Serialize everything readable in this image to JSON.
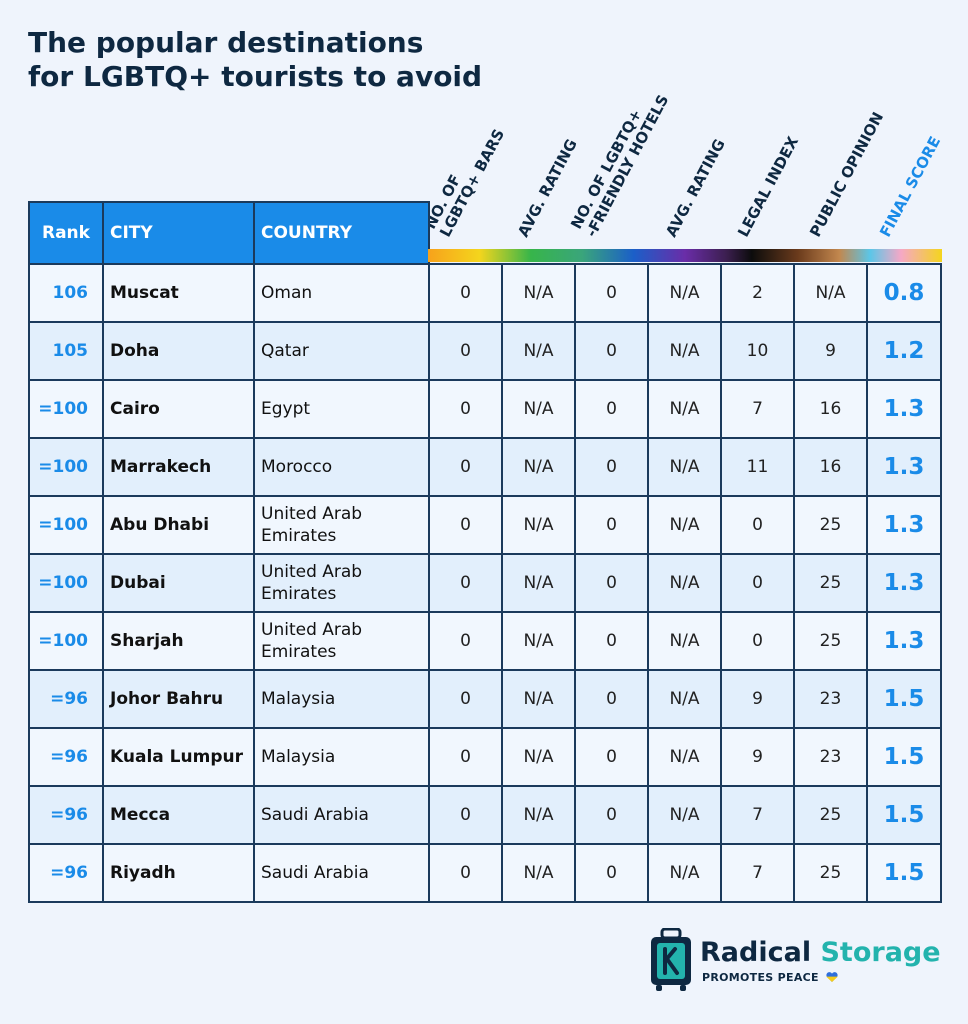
{
  "title": {
    "line1": "The popular destinations",
    "line2": "for LGBTQ+ tourists to avoid"
  },
  "header": {
    "rank": "Rank",
    "city": "CITY",
    "country": "COUNTRY",
    "rotated": [
      "NO. OF\nLGBTQ+ BARS",
      "AVG. RATING",
      "NO. OF LGBTQ+\n-FRIENDLY HOTELS",
      "AVG. RATING",
      "LEGAL INDEX",
      "PUBLIC OPINION",
      "FINAL SCORE"
    ]
  },
  "rows": [
    {
      "rank": "106",
      "city": "Muscat",
      "country": "Oman",
      "bars": "0",
      "bars_rating": "N/A",
      "hotels": "0",
      "hotels_rating": "N/A",
      "legal": "2",
      "opinion": "N/A",
      "final": "0.8"
    },
    {
      "rank": "105",
      "city": "Doha",
      "country": "Qatar",
      "bars": "0",
      "bars_rating": "N/A",
      "hotels": "0",
      "hotels_rating": "N/A",
      "legal": "10",
      "opinion": "9",
      "final": "1.2"
    },
    {
      "rank": "=100",
      "city": "Cairo",
      "country": "Egypt",
      "bars": "0",
      "bars_rating": "N/A",
      "hotels": "0",
      "hotels_rating": "N/A",
      "legal": "7",
      "opinion": "16",
      "final": "1.3"
    },
    {
      "rank": "=100",
      "city": "Marrakech",
      "country": "Morocco",
      "bars": "0",
      "bars_rating": "N/A",
      "hotels": "0",
      "hotels_rating": "N/A",
      "legal": "11",
      "opinion": "16",
      "final": "1.3"
    },
    {
      "rank": "=100",
      "city": "Abu Dhabi",
      "country": "United Arab Emirates",
      "bars": "0",
      "bars_rating": "N/A",
      "hotels": "0",
      "hotels_rating": "N/A",
      "legal": "0",
      "opinion": "25",
      "final": "1.3"
    },
    {
      "rank": "=100",
      "city": "Dubai",
      "country": "United Arab Emirates",
      "bars": "0",
      "bars_rating": "N/A",
      "hotels": "0",
      "hotels_rating": "N/A",
      "legal": "0",
      "opinion": "25",
      "final": "1.3"
    },
    {
      "rank": "=100",
      "city": "Sharjah",
      "country": "United Arab Emirates",
      "bars": "0",
      "bars_rating": "N/A",
      "hotels": "0",
      "hotels_rating": "N/A",
      "legal": "0",
      "opinion": "25",
      "final": "1.3"
    },
    {
      "rank": "=96",
      "city": "Johor Bahru",
      "country": "Malaysia",
      "bars": "0",
      "bars_rating": "N/A",
      "hotels": "0",
      "hotels_rating": "N/A",
      "legal": "9",
      "opinion": "23",
      "final": "1.5"
    },
    {
      "rank": "=96",
      "city": "Kuala Lumpur",
      "country": "Malaysia",
      "bars": "0",
      "bars_rating": "N/A",
      "hotels": "0",
      "hotels_rating": "N/A",
      "legal": "9",
      "opinion": "23",
      "final": "1.5"
    },
    {
      "rank": "=96",
      "city": "Mecca",
      "country": "Saudi Arabia",
      "bars": "0",
      "bars_rating": "N/A",
      "hotels": "0",
      "hotels_rating": "N/A",
      "legal": "7",
      "opinion": "25",
      "final": "1.5"
    },
    {
      "rank": "=96",
      "city": "Riyadh",
      "country": "Saudi Arabia",
      "bars": "0",
      "bars_rating": "N/A",
      "hotels": "0",
      "hotels_rating": "N/A",
      "legal": "7",
      "opinion": "25",
      "final": "1.5"
    }
  ],
  "logo": {
    "word1": "Radical",
    "word2": "Storage",
    "tagline": "PROMOTES PEACE",
    "icon": "luggage-icon"
  },
  "colors": {
    "accent": "#1a8be8",
    "navy": "#0e2841",
    "teal": "#23b3ad"
  }
}
